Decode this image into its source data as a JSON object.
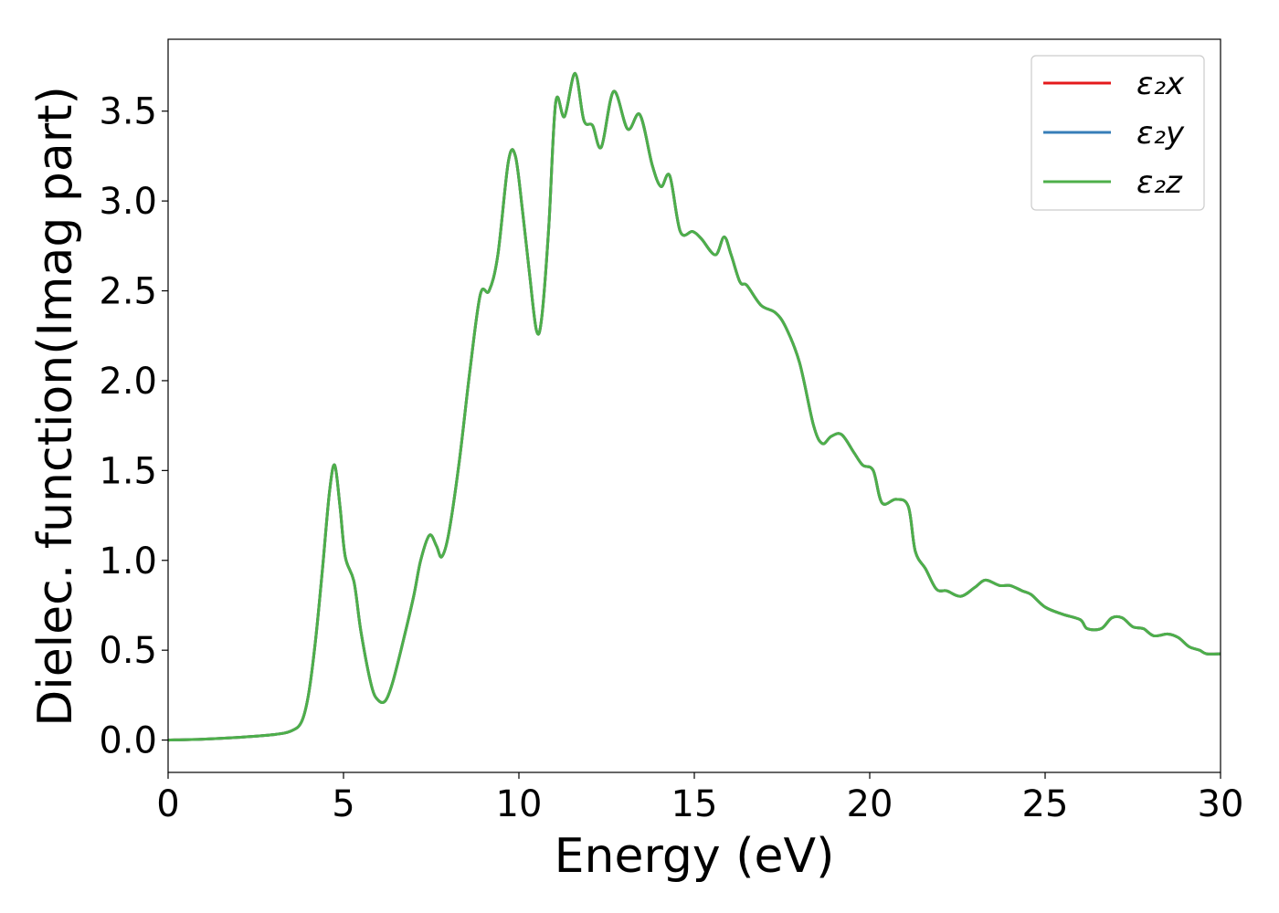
{
  "chart_data": {
    "type": "line",
    "title": "",
    "xlabel": "Energy (eV)",
    "ylabel": "Dielec. function(Imag part)",
    "xlim": [
      0,
      30
    ],
    "ylim": [
      -0.18,
      3.9
    ],
    "xticks": [
      0,
      5,
      10,
      15,
      20,
      25,
      30
    ],
    "xtick_labels": [
      "0",
      "5",
      "10",
      "15",
      "20",
      "25",
      "30"
    ],
    "yticks": [
      0.0,
      0.5,
      1.0,
      1.5,
      2.0,
      2.5,
      3.0,
      3.5
    ],
    "ytick_labels": [
      "0.0",
      "0.5",
      "1.0",
      "1.5",
      "2.0",
      "2.5",
      "3.0",
      "3.5"
    ],
    "grid": false,
    "legend_position": "top-right",
    "x": [
      0,
      1,
      2,
      3,
      3.5,
      3.8,
      4.0,
      4.2,
      4.4,
      4.6,
      4.75,
      4.9,
      5.05,
      5.3,
      5.5,
      5.8,
      6.0,
      6.2,
      6.4,
      6.7,
      7.0,
      7.2,
      7.45,
      7.65,
      7.8,
      8.0,
      8.3,
      8.6,
      8.9,
      9.15,
      9.4,
      9.7,
      9.9,
      10.1,
      10.3,
      10.5,
      10.65,
      10.85,
      11.05,
      11.3,
      11.6,
      11.85,
      12.1,
      12.35,
      12.7,
      13.1,
      13.45,
      13.8,
      14.05,
      14.3,
      14.6,
      14.95,
      15.2,
      15.6,
      15.85,
      16.05,
      16.3,
      16.5,
      16.9,
      17.3,
      17.6,
      18.0,
      18.4,
      18.65,
      18.9,
      19.2,
      19.55,
      19.8,
      20.1,
      20.35,
      20.75,
      21.1,
      21.3,
      21.6,
      21.9,
      22.2,
      22.6,
      23.0,
      23.3,
      23.7,
      24.0,
      24.35,
      24.6,
      25.0,
      25.5,
      26.0,
      26.2,
      26.6,
      26.9,
      27.2,
      27.5,
      27.8,
      28.1,
      28.5,
      28.8,
      29.1,
      29.4,
      29.6,
      30.0
    ],
    "series": [
      {
        "name": "ε₂x",
        "color": "#e41a1c",
        "values": [
          0.0,
          0.005,
          0.015,
          0.03,
          0.05,
          0.1,
          0.25,
          0.55,
          0.95,
          1.38,
          1.53,
          1.3,
          1.02,
          0.88,
          0.6,
          0.3,
          0.22,
          0.22,
          0.32,
          0.55,
          0.8,
          1.0,
          1.14,
          1.08,
          1.02,
          1.15,
          1.55,
          2.05,
          2.48,
          2.5,
          2.7,
          3.22,
          3.25,
          2.95,
          2.6,
          2.28,
          2.35,
          2.85,
          3.55,
          3.47,
          3.71,
          3.45,
          3.42,
          3.3,
          3.61,
          3.4,
          3.48,
          3.2,
          3.08,
          3.14,
          2.83,
          2.83,
          2.79,
          2.7,
          2.8,
          2.7,
          2.55,
          2.53,
          2.42,
          2.38,
          2.3,
          2.1,
          1.75,
          1.65,
          1.69,
          1.7,
          1.6,
          1.53,
          1.5,
          1.32,
          1.34,
          1.3,
          1.05,
          0.95,
          0.84,
          0.83,
          0.8,
          0.85,
          0.89,
          0.86,
          0.86,
          0.83,
          0.81,
          0.74,
          0.7,
          0.67,
          0.62,
          0.62,
          0.68,
          0.68,
          0.63,
          0.62,
          0.58,
          0.59,
          0.57,
          0.52,
          0.5,
          0.48,
          0.48
        ]
      },
      {
        "name": "ε₂y",
        "color": "#377eb8",
        "values": [
          0.0,
          0.005,
          0.015,
          0.03,
          0.05,
          0.1,
          0.25,
          0.55,
          0.95,
          1.38,
          1.53,
          1.3,
          1.02,
          0.88,
          0.6,
          0.3,
          0.22,
          0.22,
          0.32,
          0.55,
          0.8,
          1.0,
          1.14,
          1.08,
          1.02,
          1.15,
          1.55,
          2.05,
          2.48,
          2.5,
          2.7,
          3.22,
          3.25,
          2.95,
          2.6,
          2.28,
          2.35,
          2.85,
          3.55,
          3.47,
          3.71,
          3.45,
          3.42,
          3.3,
          3.61,
          3.4,
          3.48,
          3.2,
          3.08,
          3.14,
          2.83,
          2.83,
          2.79,
          2.7,
          2.8,
          2.7,
          2.55,
          2.53,
          2.42,
          2.38,
          2.3,
          2.1,
          1.75,
          1.65,
          1.69,
          1.7,
          1.6,
          1.53,
          1.5,
          1.32,
          1.34,
          1.3,
          1.05,
          0.95,
          0.84,
          0.83,
          0.8,
          0.85,
          0.89,
          0.86,
          0.86,
          0.83,
          0.81,
          0.74,
          0.7,
          0.67,
          0.62,
          0.62,
          0.68,
          0.68,
          0.63,
          0.62,
          0.58,
          0.59,
          0.57,
          0.52,
          0.5,
          0.48,
          0.48
        ]
      },
      {
        "name": "ε₂z",
        "color": "#4daf4a",
        "values": [
          0.0,
          0.005,
          0.015,
          0.03,
          0.05,
          0.1,
          0.25,
          0.55,
          0.95,
          1.38,
          1.53,
          1.3,
          1.02,
          0.88,
          0.6,
          0.3,
          0.22,
          0.22,
          0.32,
          0.55,
          0.8,
          1.0,
          1.14,
          1.08,
          1.02,
          1.15,
          1.55,
          2.05,
          2.48,
          2.5,
          2.7,
          3.22,
          3.25,
          2.95,
          2.6,
          2.28,
          2.35,
          2.85,
          3.55,
          3.47,
          3.71,
          3.45,
          3.42,
          3.3,
          3.61,
          3.4,
          3.48,
          3.2,
          3.08,
          3.14,
          2.83,
          2.83,
          2.79,
          2.7,
          2.8,
          2.7,
          2.55,
          2.53,
          2.42,
          2.38,
          2.3,
          2.1,
          1.75,
          1.65,
          1.69,
          1.7,
          1.6,
          1.53,
          1.5,
          1.32,
          1.34,
          1.3,
          1.05,
          0.95,
          0.84,
          0.83,
          0.8,
          0.85,
          0.89,
          0.86,
          0.86,
          0.83,
          0.81,
          0.74,
          0.7,
          0.67,
          0.62,
          0.62,
          0.68,
          0.68,
          0.63,
          0.62,
          0.58,
          0.59,
          0.57,
          0.52,
          0.5,
          0.48,
          0.48
        ]
      }
    ]
  }
}
